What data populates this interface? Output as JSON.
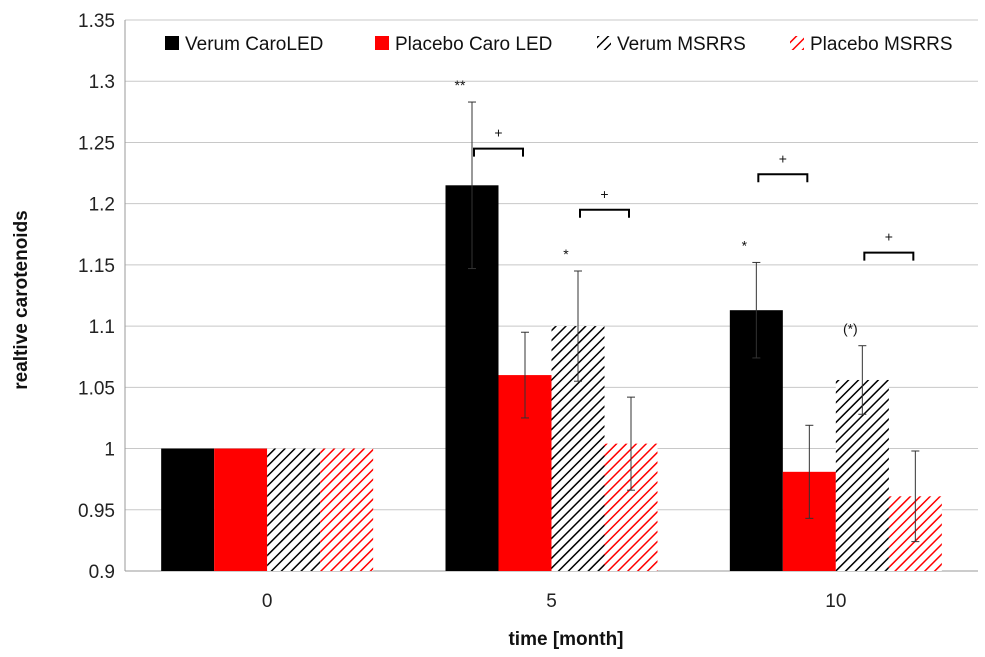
{
  "chart_data": {
    "type": "bar",
    "title": "",
    "xlabel": "time [month]",
    "ylabel": "realtive  carotenoids",
    "ylim": [
      0.9,
      1.35
    ],
    "ytick_step": 0.05,
    "yticks": [
      "0.9",
      "0.95",
      "1",
      "1.05",
      "1.1",
      "1.15",
      "1.2",
      "1.25",
      "1.3",
      "1.35"
    ],
    "grid": true,
    "legend_position": "top",
    "categories": [
      "0",
      "5",
      "10"
    ],
    "series": [
      {
        "name": "Verum CaroLED",
        "color": "#000000",
        "pattern": "solid",
        "values": [
          1.0,
          1.215,
          1.113
        ],
        "errors": [
          0,
          0.068,
          0.039
        ],
        "labels": [
          "",
          "**",
          "*"
        ]
      },
      {
        "name": "Placebo Caro LED",
        "color": "#ff0000",
        "pattern": "solid",
        "values": [
          1.0,
          1.06,
          0.981
        ],
        "errors": [
          0,
          0.035,
          0.038
        ],
        "labels": [
          "",
          "",
          ""
        ]
      },
      {
        "name": "Verum MSRRS",
        "color": "#000000",
        "pattern": "hatch",
        "values": [
          1.0,
          1.1,
          1.056
        ],
        "errors": [
          0,
          0.045,
          0.028
        ],
        "labels": [
          "",
          "*",
          "(*)"
        ]
      },
      {
        "name": "Placebo MSRRS",
        "color": "#ff0000",
        "pattern": "hatch",
        "values": [
          1.0,
          1.004,
          0.961
        ],
        "errors": [
          0,
          0.038,
          0.037
        ],
        "labels": [
          "",
          "",
          ""
        ]
      }
    ],
    "brackets": [
      {
        "category": 1,
        "pair": [
          0,
          1
        ],
        "y": 1.245,
        "label": "+"
      },
      {
        "category": 1,
        "pair": [
          2,
          3
        ],
        "y": 1.195,
        "label": "+"
      },
      {
        "category": 2,
        "pair": [
          0,
          1
        ],
        "y": 1.224,
        "label": "+"
      },
      {
        "category": 2,
        "pair": [
          2,
          3
        ],
        "y": 1.16,
        "label": "+"
      }
    ]
  }
}
